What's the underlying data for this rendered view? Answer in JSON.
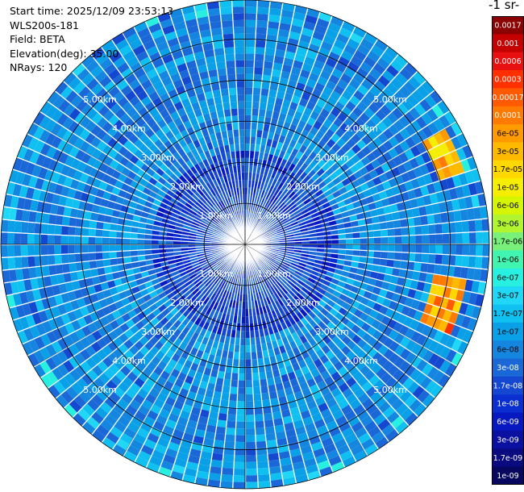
{
  "header": {
    "start_time": "Start time: 2025/12/09 23:53:13",
    "instrument": "WLS200s-181",
    "field": "Field: BETA",
    "elevation": "Elevation(deg): 35.00",
    "nrays": "NRays: 120"
  },
  "colorbar": {
    "title": "-1 sr-",
    "ticks": [
      "0.0017",
      "0.001",
      "0.0006",
      "0.0003",
      "0.00017",
      "0.0001",
      "6e-05",
      "3e-05",
      "1.7e-05",
      "1e-05",
      "6e-06",
      "3e-06",
      "1.7e-06",
      "1e-06",
      "6e-07",
      "3e-07",
      "1.7e-07",
      "1e-07",
      "6e-08",
      "3e-08",
      "1.7e-08",
      "1e-08",
      "6e-09",
      "3e-09",
      "1.7e-09",
      "1e-09"
    ],
    "colors": [
      "#8b0000",
      "#c40000",
      "#e81010",
      "#ff3000",
      "#ff5a00",
      "#ff7a00",
      "#ff9b00",
      "#ffba00",
      "#ffd800",
      "#f6ee00",
      "#d6f500",
      "#b0f530",
      "#78f07a",
      "#40f5b0",
      "#28f0e0",
      "#20d8f5",
      "#10c0f0",
      "#0aa0e8",
      "#1486e0",
      "#1a68d8",
      "#1448d0",
      "#0a2ed0",
      "#0818c0",
      "#0a10a0",
      "#0a0a80",
      "#070760"
    ]
  },
  "chart_data": {
    "type": "heatmap",
    "projection": "polar-ppi",
    "nrays": 120,
    "range_rings_km": [
      1,
      2,
      3,
      4,
      5
    ],
    "max_range_km": 5.95,
    "ring_labels": [
      "1.00km",
      "2.00km",
      "3.00km",
      "4.00km",
      "5.00km"
    ],
    "color_scale": "log",
    "value_range": [
      1e-09,
      0.0017
    ],
    "typical_background_value": 6e-08,
    "enhanced_regions": [
      {
        "bearing_deg_from": 60,
        "bearing_deg_to": 72,
        "range_km_from": 4.9,
        "range_km_to": 5.6,
        "value": 3e-05
      },
      {
        "bearing_deg_from": 100,
        "bearing_deg_to": 114,
        "range_km_from": 4.7,
        "range_km_to": 5.5,
        "value": 6e-05
      }
    ]
  }
}
